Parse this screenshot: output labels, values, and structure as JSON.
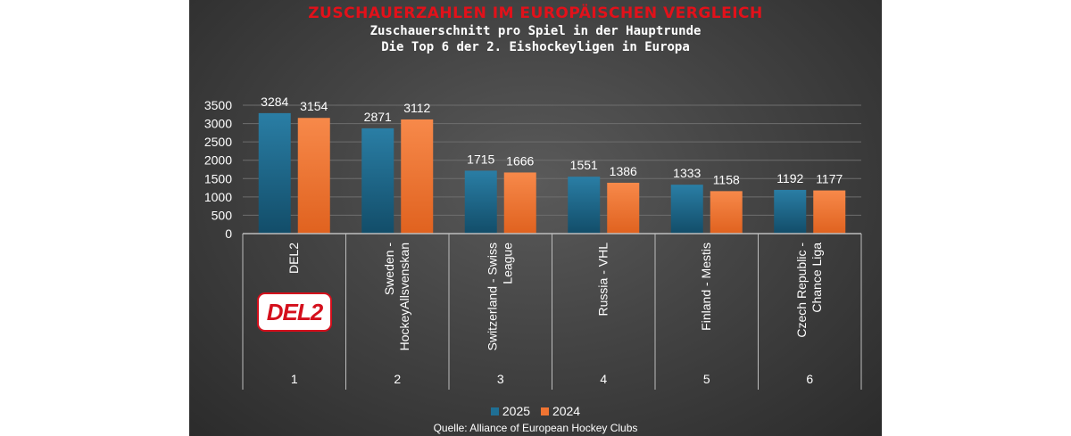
{
  "header": {
    "title": "ZUSCHAUERZAHLEN IM EUROPÄISCHEN VERGLEICH",
    "subtitle1": "Zuschauerschnitt pro Spiel in der Hauptrunde",
    "subtitle2": "Die Top 6 der 2. Eishockeyligen in Europa"
  },
  "source": "Quelle: Alliance of European Hockey Clubs",
  "logo": {
    "text": "DEL2",
    "color": "#d40f1c"
  },
  "chart_data": {
    "type": "bar",
    "categories": [
      {
        "name": "DEL2",
        "rank": "1"
      },
      {
        "name": "Sweden - HockeyAllsvenskan",
        "rank": "2"
      },
      {
        "name": "Switzerland - Swiss League",
        "rank": "3"
      },
      {
        "name": "Russia - VHL",
        "rank": "4"
      },
      {
        "name": "Finland - Mestis",
        "rank": "5"
      },
      {
        "name": "Czech Republic - Chance Liga",
        "rank": "6"
      }
    ],
    "series": [
      {
        "name": "2025",
        "color": "#1f6f94",
        "values": [
          3284,
          2871,
          1715,
          1551,
          1333,
          1192
        ]
      },
      {
        "name": "2024",
        "color": "#f07432",
        "values": [
          3154,
          3112,
          1666,
          1386,
          1158,
          1177
        ]
      }
    ],
    "ylim": [
      0,
      3500
    ],
    "yticks": [
      0,
      500,
      1000,
      1500,
      2000,
      2500,
      3000,
      3500
    ],
    "grid": true,
    "legend": "bottom"
  }
}
